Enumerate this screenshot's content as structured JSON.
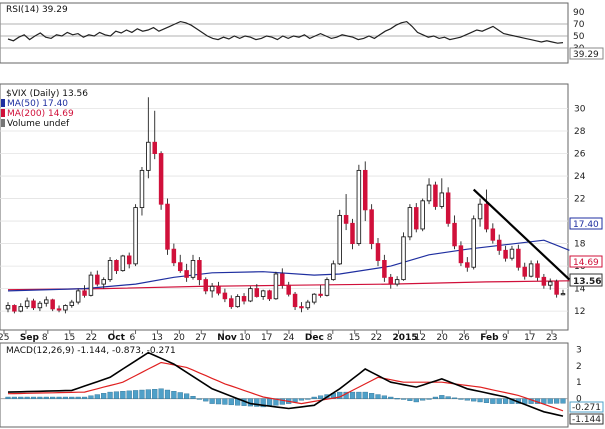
{
  "colors": {
    "up": "#ffffff",
    "down": "#d0103a",
    "upFlat": "#111111",
    "ma50": "#1f2fa0",
    "ma200": "#d0103a",
    "rsi": "#222222",
    "macd": "#000000",
    "signal": "#e02020",
    "hist": "#4fa0c8",
    "trend": "#000000"
  },
  "chart_data": [
    {
      "type": "line",
      "name": "rsi-panel",
      "title": "RSI(14) 39.29",
      "ylim": [
        10,
        100
      ],
      "yticks": [
        30,
        50,
        70,
        90
      ],
      "ref_lines": [
        30,
        50,
        70
      ],
      "last_value_label": "39.29",
      "values": [
        45,
        42,
        48,
        52,
        44,
        50,
        55,
        48,
        46,
        52,
        50,
        56,
        52,
        54,
        48,
        52,
        50,
        56,
        52,
        50,
        58,
        55,
        60,
        56,
        62,
        58,
        60,
        64,
        58,
        62,
        66,
        70,
        74,
        72,
        68,
        62,
        56,
        50,
        46,
        44,
        48,
        45,
        50,
        46,
        50,
        48,
        44,
        46,
        50,
        48,
        44,
        50,
        46,
        50,
        48,
        52,
        46,
        50,
        54,
        50,
        46,
        48,
        52,
        50,
        48,
        44,
        46,
        50,
        46,
        52,
        58,
        62,
        68,
        72,
        74,
        66,
        56,
        52,
        48,
        50,
        46,
        48,
        44,
        46,
        48,
        52,
        56,
        60,
        58,
        62,
        66,
        60,
        54,
        52,
        50,
        48,
        46,
        44,
        42,
        40,
        42,
        40,
        38,
        39
      ]
    },
    {
      "type": "candlestick",
      "name": "price-panel",
      "title": "$VIX (Daily) 13.56",
      "legend": [
        "MA(50) 17.40",
        "MA(200) 14.69",
        "Volume undef"
      ],
      "ylim": [
        10.5,
        32
      ],
      "yticks": [
        12,
        14,
        16,
        18,
        20,
        22,
        24,
        26,
        28,
        30
      ],
      "last_labels": {
        "ma50": "17.40",
        "ma200": "14.69",
        "close": "13.56"
      },
      "dates": [
        "25",
        "Sep",
        "8",
        "15",
        "22",
        "Oct",
        "6",
        "13",
        "20",
        "27",
        "Nov",
        "10",
        "17",
        "24",
        "Dec",
        "8",
        "15",
        "22",
        "2015",
        "12",
        "20",
        "26",
        "Feb",
        "9",
        "17",
        "23"
      ],
      "candles": [
        [
          12.2,
          12.8,
          11.9,
          12.5
        ],
        [
          12.5,
          12.6,
          11.8,
          12.0
        ],
        [
          12.0,
          12.7,
          11.9,
          12.4
        ],
        [
          12.4,
          13.2,
          12.2,
          12.9
        ],
        [
          12.9,
          13.1,
          12.1,
          12.3
        ],
        [
          12.3,
          12.9,
          12.0,
          12.7
        ],
        [
          12.7,
          13.3,
          12.4,
          13.0
        ],
        [
          13.0,
          13.1,
          12.0,
          12.2
        ],
        [
          12.2,
          12.5,
          11.9,
          12.1
        ],
        [
          12.1,
          12.6,
          11.8,
          12.5
        ],
        [
          12.5,
          13.0,
          12.3,
          12.8
        ],
        [
          12.8,
          14.0,
          12.6,
          13.8
        ],
        [
          13.8,
          14.3,
          13.2,
          13.4
        ],
        [
          13.4,
          15.5,
          13.3,
          15.2
        ],
        [
          15.2,
          15.6,
          14.2,
          14.4
        ],
        [
          14.4,
          15.0,
          14.0,
          14.8
        ],
        [
          14.8,
          16.8,
          14.6,
          16.5
        ],
        [
          16.5,
          16.6,
          15.3,
          15.6
        ],
        [
          15.6,
          17.0,
          15.5,
          16.9
        ],
        [
          16.9,
          17.2,
          15.8,
          16.2
        ],
        [
          16.2,
          21.5,
          16.0,
          21.2
        ],
        [
          21.2,
          24.8,
          20.5,
          24.5
        ],
        [
          24.5,
          31.0,
          23.8,
          27.0
        ],
        [
          27.0,
          29.8,
          25.5,
          26.0
        ],
        [
          26.0,
          26.2,
          21.0,
          21.5
        ],
        [
          21.5,
          22.0,
          17.0,
          17.5
        ],
        [
          17.5,
          18.0,
          16.0,
          16.3
        ],
        [
          16.3,
          17.0,
          15.4,
          15.6
        ],
        [
          15.6,
          16.2,
          14.6,
          15.0
        ],
        [
          15.0,
          17.0,
          14.8,
          16.5
        ],
        [
          16.5,
          16.8,
          14.3,
          14.8
        ],
        [
          14.8,
          15.0,
          13.5,
          13.8
        ],
        [
          13.8,
          14.5,
          13.2,
          14.2
        ],
        [
          14.2,
          14.6,
          13.4,
          13.6
        ],
        [
          13.6,
          14.0,
          12.8,
          13.1
        ],
        [
          13.1,
          13.4,
          12.2,
          12.4
        ],
        [
          12.4,
          13.5,
          12.3,
          13.3
        ],
        [
          13.3,
          13.6,
          12.6,
          12.9
        ],
        [
          12.9,
          14.2,
          12.8,
          14.0
        ],
        [
          14.0,
          14.4,
          13.2,
          13.3
        ],
        [
          13.3,
          13.9,
          13.0,
          13.8
        ],
        [
          13.8,
          13.9,
          12.9,
          13.1
        ],
        [
          13.1,
          15.5,
          13.0,
          15.3
        ],
        [
          15.3,
          15.8,
          14.0,
          14.3
        ],
        [
          14.3,
          14.6,
          13.3,
          13.5
        ],
        [
          13.5,
          13.7,
          12.1,
          12.4
        ],
        [
          12.4,
          12.8,
          11.9,
          12.3
        ],
        [
          12.3,
          13.0,
          12.1,
          12.8
        ],
        [
          12.8,
          13.6,
          12.6,
          13.5
        ],
        [
          13.5,
          14.3,
          13.2,
          13.4
        ],
        [
          13.4,
          15.0,
          13.3,
          14.8
        ],
        [
          14.8,
          16.5,
          14.7,
          16.2
        ],
        [
          16.2,
          21.0,
          16.1,
          20.5
        ],
        [
          20.5,
          22.4,
          19.2,
          19.8
        ],
        [
          19.8,
          20.2,
          17.5,
          18.0
        ],
        [
          18.0,
          25.0,
          17.8,
          24.5
        ],
        [
          24.5,
          25.3,
          20.0,
          21.0
        ],
        [
          21.0,
          21.5,
          17.5,
          18.0
        ],
        [
          18.0,
          18.5,
          16.0,
          16.5
        ],
        [
          16.5,
          17.0,
          14.6,
          15.0
        ],
        [
          15.0,
          15.3,
          14.0,
          14.4
        ],
        [
          14.4,
          15.1,
          14.2,
          14.8
        ],
        [
          14.8,
          19.0,
          14.7,
          18.6
        ],
        [
          18.6,
          21.5,
          18.3,
          21.2
        ],
        [
          21.2,
          21.6,
          19.0,
          19.3
        ],
        [
          19.3,
          22.0,
          19.1,
          21.8
        ],
        [
          21.8,
          23.8,
          21.5,
          23.2
        ],
        [
          23.2,
          23.5,
          21.0,
          21.3
        ],
        [
          21.3,
          23.8,
          21.1,
          22.5
        ],
        [
          22.5,
          23.0,
          19.5,
          19.8
        ],
        [
          19.8,
          20.5,
          17.5,
          17.8
        ],
        [
          17.8,
          18.2,
          16.0,
          16.3
        ],
        [
          16.3,
          16.8,
          15.5,
          15.9
        ],
        [
          15.9,
          20.5,
          15.7,
          20.2
        ],
        [
          20.2,
          22.0,
          19.5,
          21.5
        ],
        [
          21.5,
          22.8,
          19.0,
          19.3
        ],
        [
          19.3,
          19.8,
          18.0,
          18.3
        ],
        [
          18.3,
          18.8,
          17.0,
          17.4
        ],
        [
          17.4,
          17.8,
          16.4,
          16.7
        ],
        [
          16.7,
          17.8,
          16.5,
          17.5
        ],
        [
          17.5,
          17.9,
          15.6,
          15.9
        ],
        [
          15.9,
          16.3,
          14.8,
          15.1
        ],
        [
          15.1,
          16.5,
          15.0,
          16.2
        ],
        [
          16.2,
          16.5,
          14.7,
          15.0
        ],
        [
          15.0,
          15.3,
          14.0,
          14.3
        ],
        [
          14.3,
          14.9,
          13.9,
          14.6
        ],
        [
          14.6,
          14.8,
          13.2,
          13.5
        ],
        [
          13.5,
          13.9,
          13.4,
          13.56
        ]
      ],
      "ma50": [
        [
          0,
          13.8
        ],
        [
          12,
          14.0
        ],
        [
          20,
          14.4
        ],
        [
          26,
          15.0
        ],
        [
          32,
          15.4
        ],
        [
          40,
          15.5
        ],
        [
          48,
          15.2
        ],
        [
          52,
          15.3
        ],
        [
          60,
          16.0
        ],
        [
          66,
          17.0
        ],
        [
          72,
          17.5
        ],
        [
          78,
          17.9
        ],
        [
          84,
          18.3
        ],
        [
          88,
          17.4
        ]
      ],
      "ma200": [
        [
          0,
          13.9
        ],
        [
          15,
          14.0
        ],
        [
          30,
          14.2
        ],
        [
          45,
          14.3
        ],
        [
          60,
          14.4
        ],
        [
          75,
          14.6
        ],
        [
          88,
          14.69
        ]
      ],
      "trendline": [
        [
          73,
          22.8
        ],
        [
          88,
          14.8
        ]
      ]
    },
    {
      "type": "line",
      "name": "macd-panel",
      "title": "MACD(12,26,9) -1.144, -0.873, -0.271",
      "ylim": [
        -1.6,
        3.2
      ],
      "yticks": [
        0,
        1,
        2,
        3
      ],
      "last_labels": {
        "hist": "-0.271",
        "macd": "-1.144"
      },
      "macd": [
        [
          0,
          0.4
        ],
        [
          10,
          0.5
        ],
        [
          16,
          1.3
        ],
        [
          22,
          2.8
        ],
        [
          26,
          2.1
        ],
        [
          32,
          0.6
        ],
        [
          38,
          -0.3
        ],
        [
          44,
          -0.6
        ],
        [
          48,
          -0.4
        ],
        [
          52,
          0.6
        ],
        [
          56,
          1.8
        ],
        [
          60,
          1.0
        ],
        [
          64,
          0.7
        ],
        [
          68,
          1.2
        ],
        [
          72,
          0.6
        ],
        [
          78,
          0.1
        ],
        [
          84,
          -0.8
        ],
        [
          88,
          -1.144
        ]
      ],
      "signal": [
        [
          0,
          0.3
        ],
        [
          12,
          0.4
        ],
        [
          18,
          1.0
        ],
        [
          24,
          2.2
        ],
        [
          28,
          1.9
        ],
        [
          34,
          0.9
        ],
        [
          40,
          0.1
        ],
        [
          46,
          -0.3
        ],
        [
          52,
          0.1
        ],
        [
          58,
          1.3
        ],
        [
          62,
          1.0
        ],
        [
          68,
          1.0
        ],
        [
          74,
          0.7
        ],
        [
          80,
          0.2
        ],
        [
          88,
          -0.873
        ]
      ],
      "hist": [
        [
          0,
          0.1
        ],
        [
          12,
          0.1
        ],
        [
          16,
          0.4
        ],
        [
          20,
          0.5
        ],
        [
          24,
          0.6
        ],
        [
          28,
          0.3
        ],
        [
          32,
          -0.3
        ],
        [
          36,
          -0.4
        ],
        [
          40,
          -0.5
        ],
        [
          44,
          -0.3
        ],
        [
          48,
          0.1
        ],
        [
          52,
          0.4
        ],
        [
          56,
          0.4
        ],
        [
          60,
          0.1
        ],
        [
          64,
          -0.2
        ],
        [
          68,
          0.2
        ],
        [
          72,
          -0.1
        ],
        [
          76,
          -0.3
        ],
        [
          80,
          -0.3
        ],
        [
          84,
          -0.3
        ],
        [
          88,
          -0.271
        ]
      ]
    }
  ]
}
